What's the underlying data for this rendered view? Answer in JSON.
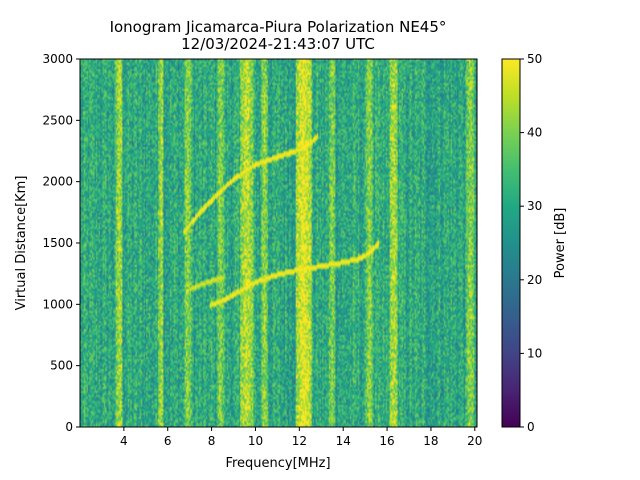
{
  "chart_data": {
    "type": "heatmap",
    "title": "Ionogram Jicamarca-Piura Polarization NE45°",
    "subtitle": "12/03/2024-21:43:07 UTC",
    "xlabel": "Frequency[MHz]",
    "ylabel": "Virtual Distance[Km]",
    "xlim": [
      2.0,
      20.1
    ],
    "ylim": [
      0,
      3000
    ],
    "x_ticks": [
      4,
      6,
      8,
      10,
      12,
      14,
      16,
      18,
      20
    ],
    "y_ticks": [
      0,
      500,
      1000,
      1500,
      2000,
      2500,
      3000
    ],
    "colorbar": {
      "label": "Power [dB]",
      "min": 0,
      "max": 50,
      "ticks": [
        0,
        10,
        20,
        30,
        40,
        50
      ],
      "colormap": "viridis"
    },
    "background_level_db": 30,
    "interference_bands_mhz": [
      {
        "f": 3.8,
        "width": 0.15,
        "level_db": 45
      },
      {
        "f": 5.7,
        "width": 0.12,
        "level_db": 44
      },
      {
        "f": 6.9,
        "width": 0.15,
        "level_db": 42
      },
      {
        "f": 8.4,
        "width": 0.15,
        "level_db": 41
      },
      {
        "f": 9.6,
        "width": 0.3,
        "level_db": 46
      },
      {
        "f": 10.4,
        "width": 0.15,
        "level_db": 42
      },
      {
        "f": 12.2,
        "width": 0.35,
        "level_db": 50
      },
      {
        "f": 13.5,
        "width": 0.15,
        "level_db": 41
      },
      {
        "f": 15.2,
        "width": 0.15,
        "level_db": 42
      },
      {
        "f": 16.3,
        "width": 0.2,
        "level_db": 45
      },
      {
        "f": 19.8,
        "width": 0.2,
        "level_db": 42
      }
    ],
    "series": [
      {
        "trace": "lower",
        "level_db": 48,
        "points": [
          [
            7.9,
            1000
          ],
          [
            8.5,
            1040
          ],
          [
            9.0,
            1090
          ],
          [
            9.5,
            1140
          ],
          [
            10.0,
            1190
          ],
          [
            11.0,
            1250
          ],
          [
            12.0,
            1290
          ],
          [
            13.0,
            1320
          ],
          [
            14.0,
            1350
          ],
          [
            14.7,
            1380
          ],
          [
            15.2,
            1430
          ],
          [
            15.6,
            1510
          ]
        ]
      },
      {
        "trace": "lower-faint",
        "level_db": 45,
        "points": [
          [
            7.0,
            1130
          ],
          [
            7.5,
            1170
          ],
          [
            8.0,
            1200
          ],
          [
            8.5,
            1230
          ]
        ]
      },
      {
        "trace": "upper",
        "level_db": 48,
        "points": [
          [
            6.7,
            1590
          ],
          [
            7.0,
            1660
          ],
          [
            7.5,
            1770
          ],
          [
            8.0,
            1860
          ],
          [
            8.5,
            1950
          ],
          [
            9.0,
            2030
          ],
          [
            9.5,
            2090
          ],
          [
            10.0,
            2150
          ],
          [
            11.0,
            2210
          ],
          [
            12.0,
            2270
          ],
          [
            12.5,
            2320
          ],
          [
            12.8,
            2380
          ]
        ]
      }
    ]
  }
}
